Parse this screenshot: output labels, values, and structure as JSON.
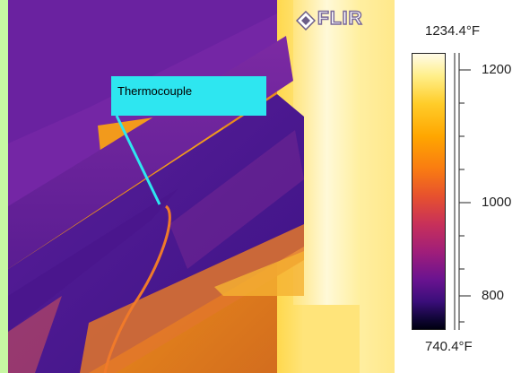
{
  "logo": {
    "text": "FLIR"
  },
  "callout": {
    "label": "Thermocouple"
  },
  "scale": {
    "max": "1234.4°F",
    "min": "740.4°F",
    "ticks": [
      "1200",
      "1000",
      "800"
    ],
    "palette": "iron"
  }
}
